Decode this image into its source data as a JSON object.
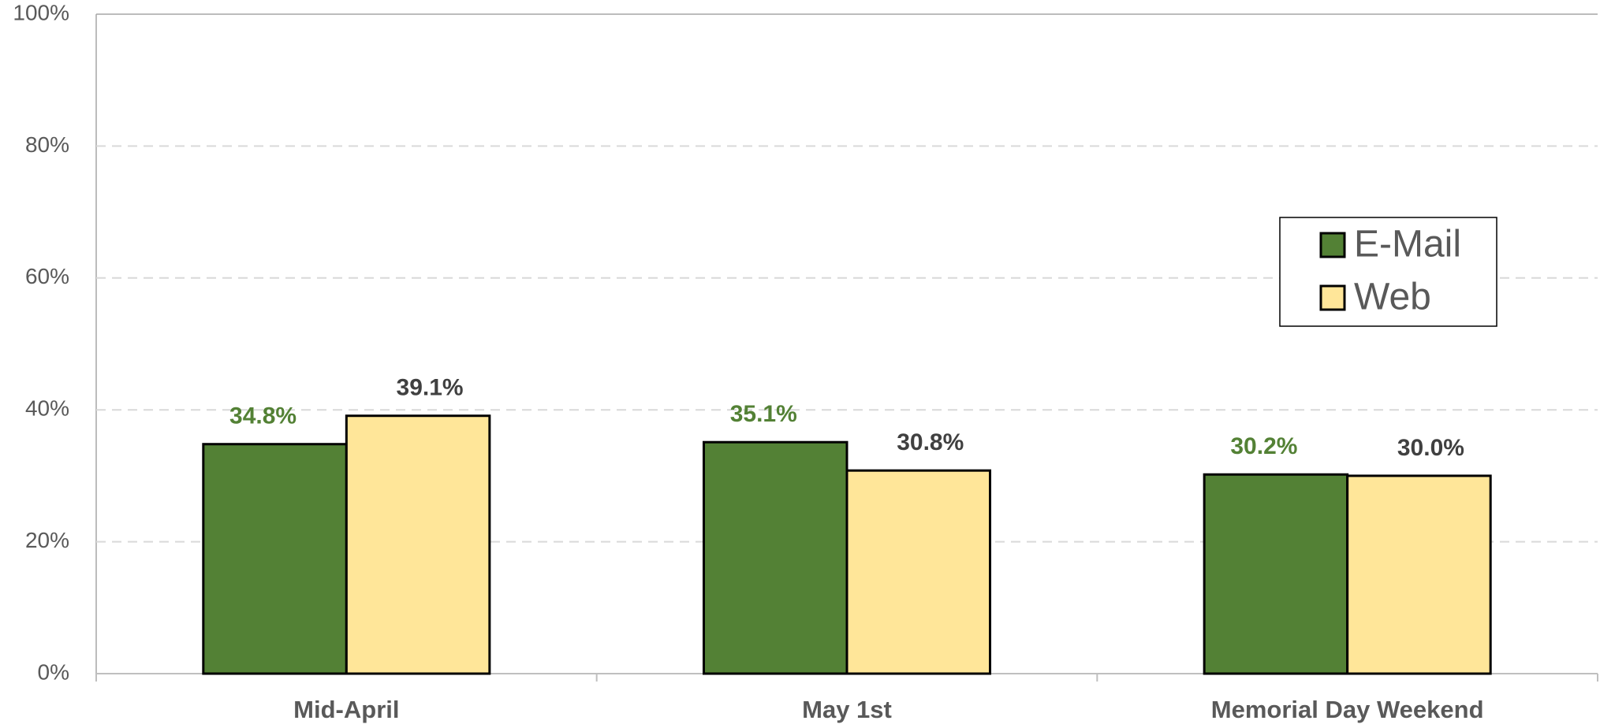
{
  "chart_data": {
    "type": "bar",
    "categories": [
      "Mid-April",
      "May  1st",
      "Memorial Day Weekend"
    ],
    "series": [
      {
        "name": "E-Mail",
        "color": "#538135",
        "label_color": "#538135",
        "values": [
          34.8,
          35.1,
          30.2
        ],
        "value_labels": [
          "34.8%",
          "35.1%",
          "30.2%"
        ]
      },
      {
        "name": "Web",
        "color": "#FFE699",
        "label_color": "#404040",
        "values": [
          39.1,
          30.8,
          30.0
        ],
        "value_labels": [
          "39.1%",
          "30.8%",
          "30.0%"
        ]
      }
    ],
    "ylim": [
      0,
      100
    ],
    "yticks": [
      {
        "value": 0,
        "label": "0%"
      },
      {
        "value": 20,
        "label": "20%"
      },
      {
        "value": 40,
        "label": "40%"
      },
      {
        "value": 60,
        "label": "60%"
      },
      {
        "value": 80,
        "label": "80%"
      },
      {
        "value": 100,
        "label": "100%"
      }
    ],
    "grid": true,
    "legend_position": "right"
  }
}
